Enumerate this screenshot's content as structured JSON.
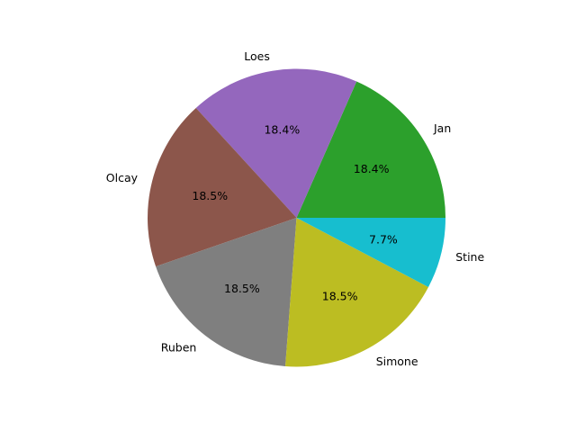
{
  "chart_data": {
    "type": "pie",
    "title": "",
    "start_angle_deg": 0,
    "direction": "counterclockwise",
    "slices": [
      {
        "label": "Jan",
        "value": 18.4,
        "pct_label": "18.4%",
        "color": "#2ca02c"
      },
      {
        "label": "Loes",
        "value": 18.4,
        "pct_label": "18.4%",
        "color": "#9467bd"
      },
      {
        "label": "Olcay",
        "value": 18.5,
        "pct_label": "18.5%",
        "color": "#8c564b"
      },
      {
        "label": "Ruben",
        "value": 18.5,
        "pct_label": "18.5%",
        "color": "#7f7f7f"
      },
      {
        "label": "Simone",
        "value": 18.5,
        "pct_label": "18.5%",
        "color": "#bcbd22"
      },
      {
        "label": "Stine",
        "value": 7.7,
        "pct_label": "7.7%",
        "color": "#17becf"
      }
    ]
  }
}
